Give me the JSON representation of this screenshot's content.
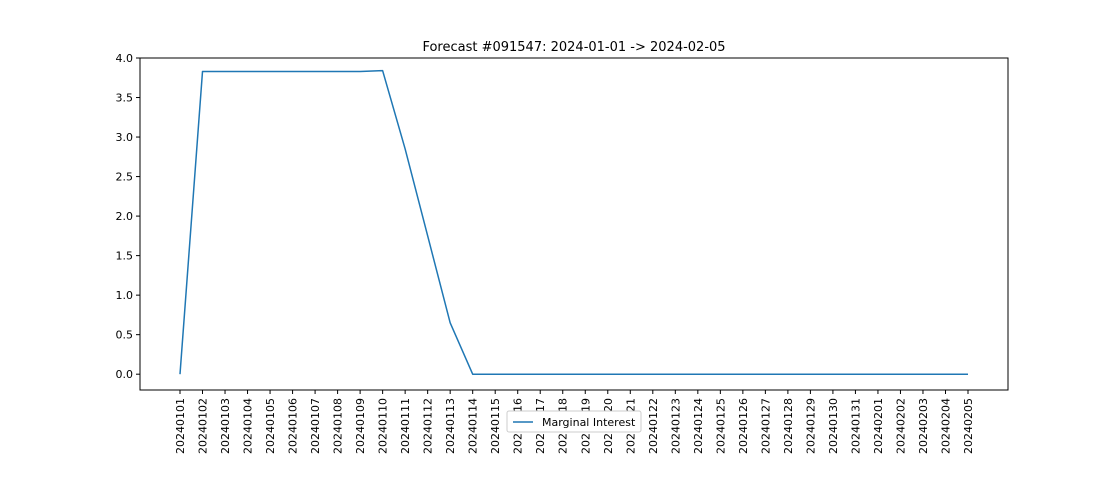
{
  "chart_data": {
    "type": "line",
    "title": "Forecast #091547: 2024-01-01 -> 2024-02-05",
    "xlabel": "",
    "ylabel": "",
    "ylim": [
      -0.2,
      4.0
    ],
    "yticks": [
      "0.0",
      "0.5",
      "1.0",
      "1.5",
      "2.0",
      "2.5",
      "3.0",
      "3.5",
      "4.0"
    ],
    "grid": false,
    "legend_position": "lower center",
    "categories": [
      "20240101",
      "20240102",
      "20240103",
      "20240104",
      "20240105",
      "20240106",
      "20240107",
      "20240108",
      "20240109",
      "20240110",
      "20240111",
      "20240112",
      "20240113",
      "20240114",
      "20240115",
      "20240116",
      "20240117",
      "20240118",
      "20240119",
      "20240120",
      "20240121",
      "20240122",
      "20240123",
      "20240124",
      "20240125",
      "20240126",
      "20240127",
      "20240128",
      "20240129",
      "20240130",
      "20240131",
      "20240201",
      "20240202",
      "20240203",
      "20240204",
      "20240205"
    ],
    "series": [
      {
        "name": "Marginal Interest",
        "color": "#1f77b4",
        "values": [
          0.0,
          3.83,
          3.83,
          3.83,
          3.83,
          3.83,
          3.83,
          3.83,
          3.83,
          3.84,
          2.85,
          1.75,
          0.65,
          0.0,
          0.0,
          0.0,
          0.0,
          0.0,
          0.0,
          0.0,
          0.0,
          0.0,
          0.0,
          0.0,
          0.0,
          0.0,
          0.0,
          0.0,
          0.0,
          0.0,
          0.0,
          0.0,
          0.0,
          0.0,
          0.0,
          0.0
        ]
      }
    ]
  }
}
